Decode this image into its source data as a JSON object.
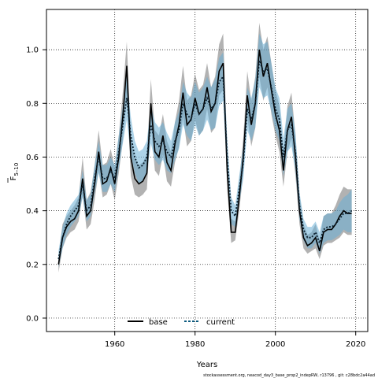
{
  "chart_data": {
    "type": "line",
    "title": "",
    "xlabel": "Years",
    "ylabel_main": "F",
    "ylabel_sub": "5–10",
    "xlim": [
      1943,
      2023
    ],
    "ylim": [
      -0.05,
      1.15
    ],
    "x_ticks": [
      1960,
      1980,
      2000,
      2020
    ],
    "y_ticks": [
      0.0,
      0.2,
      0.4,
      0.6,
      0.8,
      1.0
    ],
    "y_tick_labels": [
      "0.0",
      "0.2",
      "0.4",
      "0.6",
      "0.8",
      "1.0"
    ],
    "grid": "dotted",
    "legend": {
      "position": "bottom-center",
      "entries": [
        {
          "label": "base",
          "style": "solid",
          "color": "#000000"
        },
        {
          "label": "current",
          "style": "dashed",
          "color": "#0b5a7e"
        }
      ]
    },
    "x": [
      1946,
      1947,
      1948,
      1949,
      1950,
      1951,
      1952,
      1953,
      1954,
      1955,
      1956,
      1957,
      1958,
      1959,
      1960,
      1961,
      1962,
      1963,
      1964,
      1965,
      1966,
      1967,
      1968,
      1969,
      1970,
      1971,
      1972,
      1973,
      1974,
      1975,
      1976,
      1977,
      1978,
      1979,
      1980,
      1981,
      1982,
      1983,
      1984,
      1985,
      1986,
      1987,
      1988,
      1989,
      1990,
      1991,
      1992,
      1993,
      1994,
      1995,
      1996,
      1997,
      1998,
      1999,
      2000,
      2001,
      2002,
      2003,
      2004,
      2005,
      2006,
      2007,
      2008,
      2009,
      2010,
      2011,
      2012,
      2013,
      2014,
      2015,
      2016,
      2017,
      2018,
      2019
    ],
    "series": [
      {
        "name": "base",
        "color": "#000000",
        "band_color": "#555555",
        "values": [
          0.2,
          0.3,
          0.34,
          0.36,
          0.37,
          0.4,
          0.52,
          0.38,
          0.4,
          0.5,
          0.62,
          0.5,
          0.51,
          0.56,
          0.5,
          0.6,
          0.75,
          0.94,
          0.6,
          0.52,
          0.5,
          0.51,
          0.54,
          0.8,
          0.62,
          0.6,
          0.68,
          0.58,
          0.55,
          0.65,
          0.72,
          0.84,
          0.72,
          0.74,
          0.82,
          0.76,
          0.78,
          0.86,
          0.77,
          0.8,
          0.92,
          0.95,
          0.55,
          0.32,
          0.32,
          0.45,
          0.6,
          0.83,
          0.72,
          0.8,
          1.0,
          0.9,
          0.95,
          0.85,
          0.76,
          0.7,
          0.55,
          0.7,
          0.75,
          0.6,
          0.4,
          0.3,
          0.27,
          0.28,
          0.3,
          0.25,
          0.32,
          0.33,
          0.33,
          0.35,
          0.38,
          0.4,
          0.39,
          0.39
        ],
        "lower": [
          0.17,
          0.26,
          0.3,
          0.32,
          0.33,
          0.36,
          0.46,
          0.33,
          0.35,
          0.44,
          0.55,
          0.45,
          0.46,
          0.5,
          0.44,
          0.54,
          0.66,
          0.84,
          0.53,
          0.46,
          0.45,
          0.46,
          0.48,
          0.72,
          0.55,
          0.53,
          0.61,
          0.51,
          0.49,
          0.58,
          0.64,
          0.75,
          0.64,
          0.66,
          0.74,
          0.68,
          0.7,
          0.78,
          0.69,
          0.71,
          0.83,
          0.85,
          0.48,
          0.28,
          0.29,
          0.4,
          0.54,
          0.75,
          0.64,
          0.71,
          0.9,
          0.81,
          0.86,
          0.76,
          0.68,
          0.62,
          0.49,
          0.62,
          0.67,
          0.53,
          0.35,
          0.26,
          0.24,
          0.25,
          0.26,
          0.22,
          0.27,
          0.28,
          0.28,
          0.29,
          0.3,
          0.32,
          0.31,
          0.31
        ],
        "upper": [
          0.23,
          0.35,
          0.38,
          0.4,
          0.42,
          0.45,
          0.6,
          0.44,
          0.47,
          0.57,
          0.7,
          0.57,
          0.58,
          0.63,
          0.56,
          0.68,
          0.84,
          1.03,
          0.68,
          0.59,
          0.57,
          0.58,
          0.61,
          0.89,
          0.7,
          0.68,
          0.76,
          0.66,
          0.62,
          0.73,
          0.81,
          0.94,
          0.81,
          0.83,
          0.91,
          0.85,
          0.87,
          0.95,
          0.86,
          0.9,
          1.02,
          1.06,
          0.63,
          0.37,
          0.36,
          0.51,
          0.67,
          0.92,
          0.81,
          0.9,
          1.1,
          1.0,
          1.05,
          0.95,
          0.85,
          0.79,
          0.62,
          0.79,
          0.84,
          0.68,
          0.46,
          0.35,
          0.31,
          0.32,
          0.35,
          0.29,
          0.38,
          0.39,
          0.39,
          0.42,
          0.46,
          0.49,
          0.48,
          0.48
        ]
      },
      {
        "name": "current",
        "color": "#0b5a7e",
        "band_color": "#6aaed6",
        "values": [
          0.22,
          0.3,
          0.35,
          0.38,
          0.4,
          0.42,
          0.5,
          0.4,
          0.42,
          0.52,
          0.6,
          0.52,
          0.52,
          0.55,
          0.52,
          0.62,
          0.72,
          0.82,
          0.68,
          0.6,
          0.56,
          0.57,
          0.6,
          0.72,
          0.66,
          0.64,
          0.66,
          0.62,
          0.6,
          0.66,
          0.7,
          0.8,
          0.76,
          0.74,
          0.8,
          0.76,
          0.78,
          0.82,
          0.78,
          0.8,
          0.88,
          0.9,
          0.6,
          0.4,
          0.38,
          0.48,
          0.58,
          0.78,
          0.74,
          0.8,
          0.96,
          0.92,
          0.93,
          0.86,
          0.78,
          0.74,
          0.6,
          0.7,
          0.72,
          0.62,
          0.42,
          0.33,
          0.3,
          0.3,
          0.32,
          0.28,
          0.33,
          0.34,
          0.34,
          0.35,
          0.37,
          0.39,
          0.39,
          0.4
        ],
        "lower": [
          0.19,
          0.26,
          0.31,
          0.34,
          0.36,
          0.38,
          0.45,
          0.36,
          0.38,
          0.47,
          0.54,
          0.47,
          0.47,
          0.5,
          0.47,
          0.56,
          0.65,
          0.74,
          0.61,
          0.54,
          0.5,
          0.51,
          0.54,
          0.65,
          0.59,
          0.57,
          0.59,
          0.55,
          0.54,
          0.59,
          0.63,
          0.72,
          0.68,
          0.66,
          0.72,
          0.68,
          0.7,
          0.74,
          0.7,
          0.71,
          0.79,
          0.81,
          0.53,
          0.35,
          0.34,
          0.43,
          0.52,
          0.7,
          0.66,
          0.71,
          0.86,
          0.82,
          0.83,
          0.77,
          0.7,
          0.66,
          0.53,
          0.62,
          0.64,
          0.55,
          0.37,
          0.29,
          0.26,
          0.26,
          0.28,
          0.24,
          0.28,
          0.29,
          0.29,
          0.3,
          0.31,
          0.33,
          0.32,
          0.32
        ],
        "upper": [
          0.25,
          0.34,
          0.39,
          0.42,
          0.44,
          0.46,
          0.55,
          0.44,
          0.46,
          0.57,
          0.66,
          0.57,
          0.57,
          0.6,
          0.57,
          0.68,
          0.79,
          0.9,
          0.75,
          0.66,
          0.62,
          0.63,
          0.66,
          0.79,
          0.73,
          0.71,
          0.73,
          0.69,
          0.66,
          0.73,
          0.77,
          0.88,
          0.84,
          0.82,
          0.88,
          0.84,
          0.86,
          0.9,
          0.86,
          0.89,
          0.97,
          0.99,
          0.67,
          0.45,
          0.42,
          0.53,
          0.64,
          0.86,
          0.82,
          0.89,
          1.06,
          1.02,
          1.03,
          0.95,
          0.86,
          0.82,
          0.67,
          0.78,
          0.8,
          0.69,
          0.47,
          0.37,
          0.34,
          0.34,
          0.36,
          0.32,
          0.38,
          0.39,
          0.39,
          0.4,
          0.43,
          0.45,
          0.46,
          0.48
        ]
      }
    ],
    "footnote": "stockassessment.org,  neacod_day3_base_prop2_indepRW,  r13796  ,  git: c28bdc2a44ad"
  }
}
